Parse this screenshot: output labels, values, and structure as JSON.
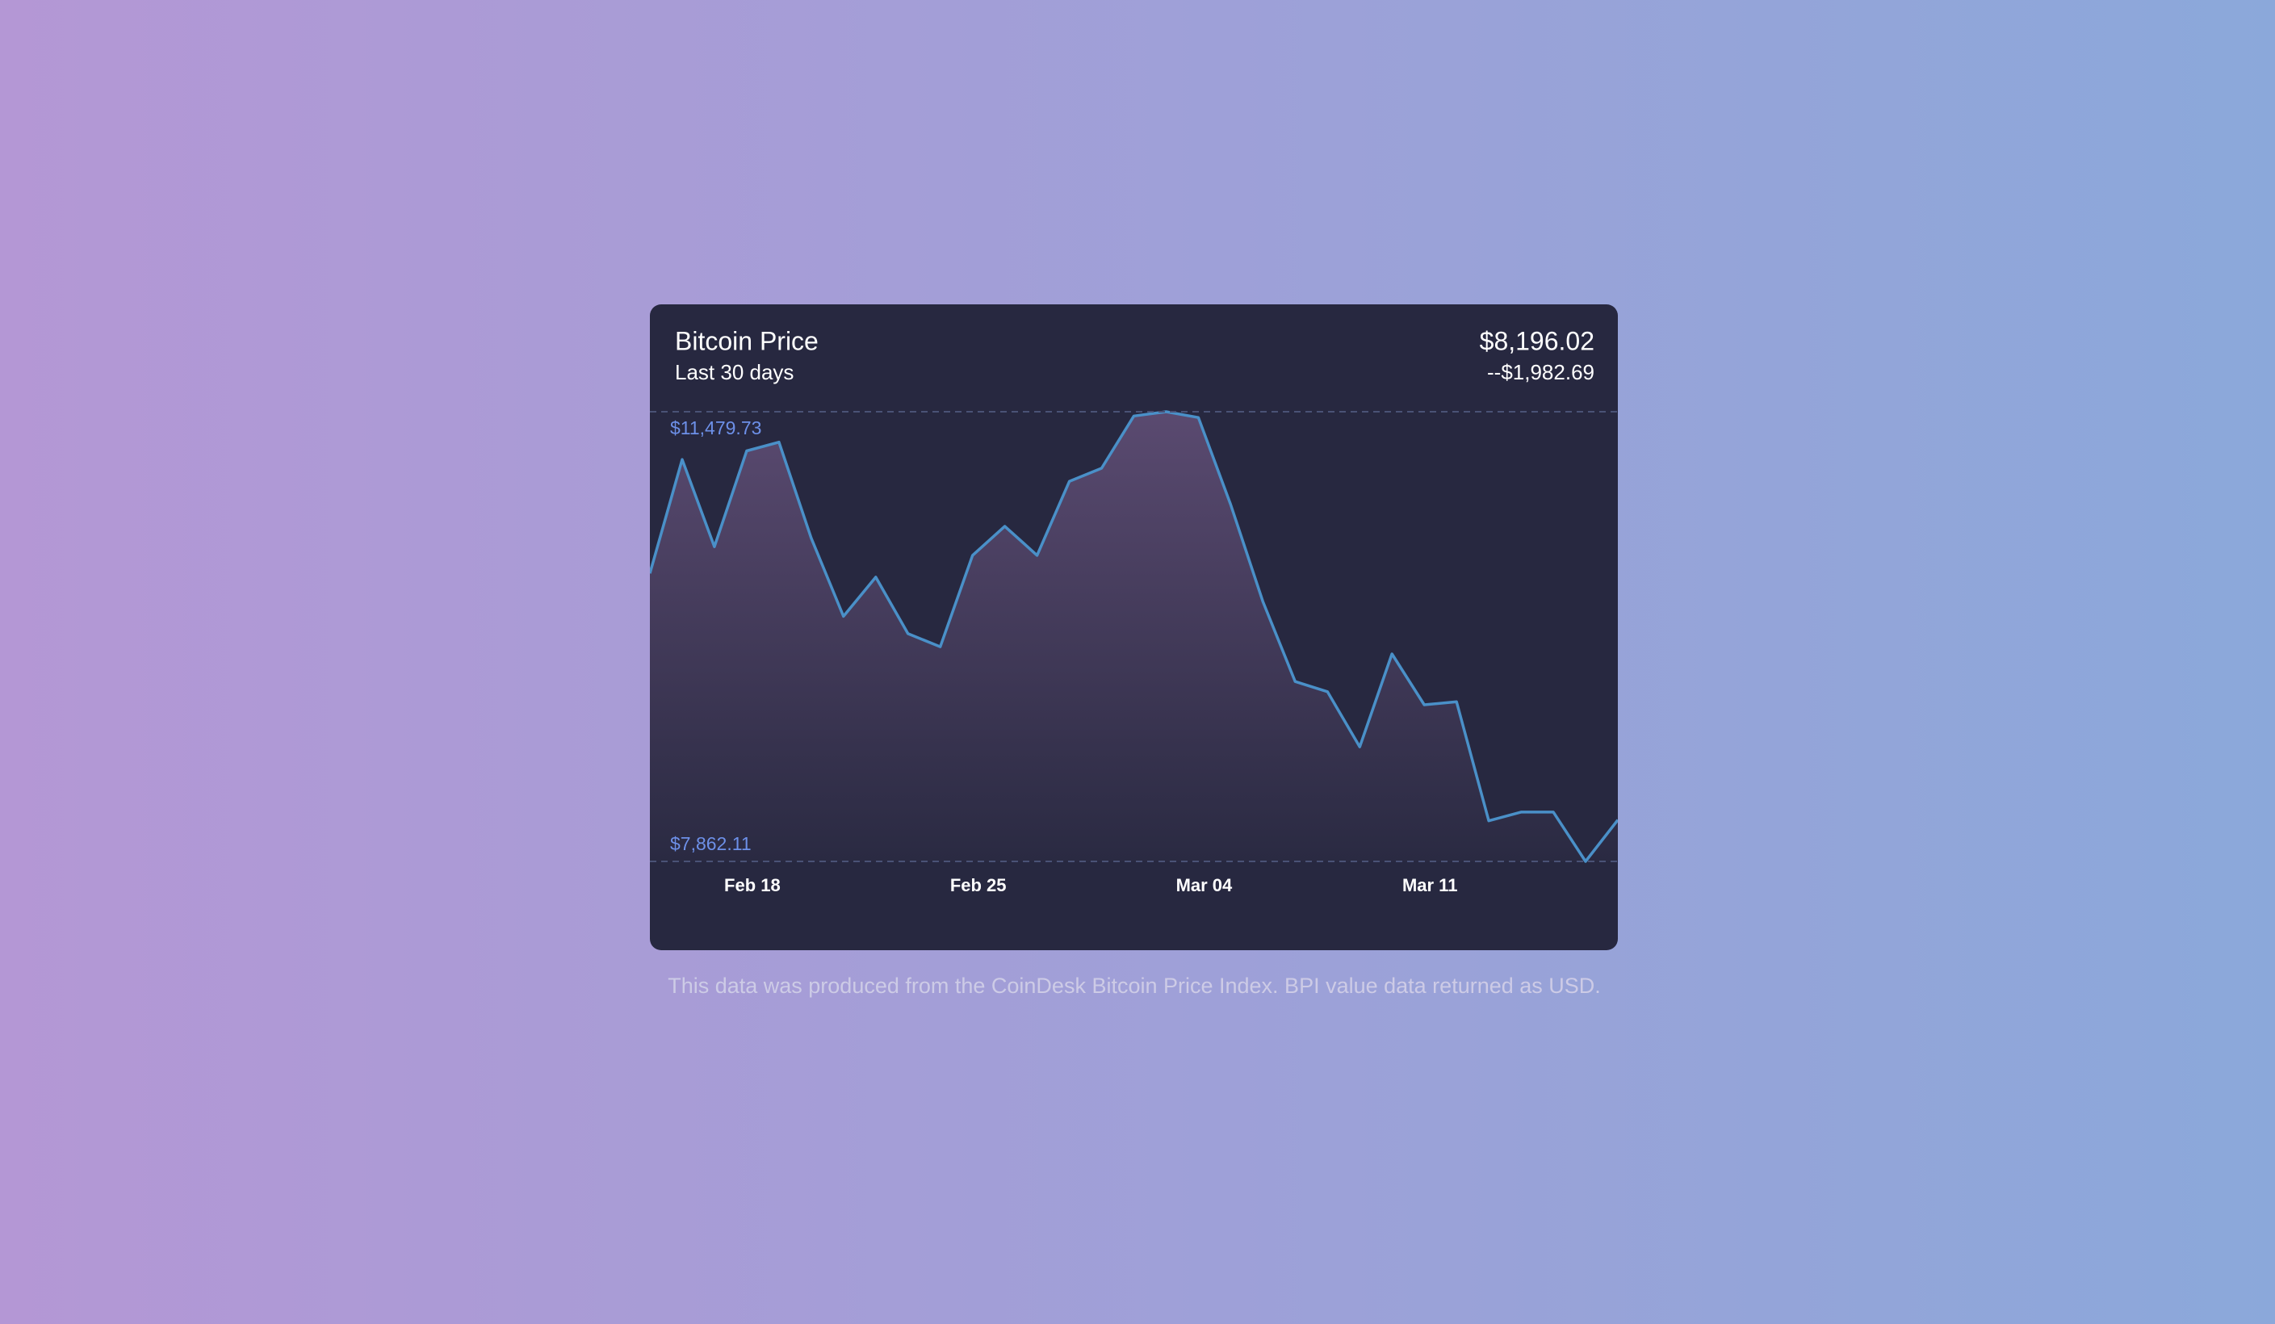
{
  "chart_data": {
    "type": "line",
    "title": "Bitcoin Price",
    "subtitle": "Last 30 days",
    "price": "$8,196.02",
    "change": "--$1,982.69",
    "categories": [
      null,
      null,
      null,
      "Feb 18",
      null,
      null,
      null,
      null,
      null,
      null,
      "Feb 25",
      null,
      null,
      null,
      null,
      null,
      null,
      "Mar 04",
      null,
      null,
      null,
      null,
      null,
      null,
      "Mar 11",
      null,
      null,
      null,
      null,
      null,
      null
    ],
    "values": [
      10178.71,
      11095,
      10394,
      11165,
      11235,
      10464,
      9834,
      10149,
      9694,
      9589,
      10324,
      10558,
      10324,
      10919,
      11025,
      11445,
      11479.73,
      11433,
      10733,
      9951,
      9309,
      9227,
      8784,
      9531,
      9122,
      9146,
      8189,
      8259,
      8259,
      7862.11,
      8196.02
    ],
    "color": "#4a90c8",
    "ylim": [
      7862.11,
      11479.73
    ],
    "annotations": [
      {
        "value": 11479.73,
        "label": "$11,479.73"
      },
      {
        "value": 7862.11,
        "label": "$7,862.11"
      }
    ]
  },
  "footnote": "This data was produced from the CoinDesk Bitcoin Price Index. BPI value data returned as USD."
}
